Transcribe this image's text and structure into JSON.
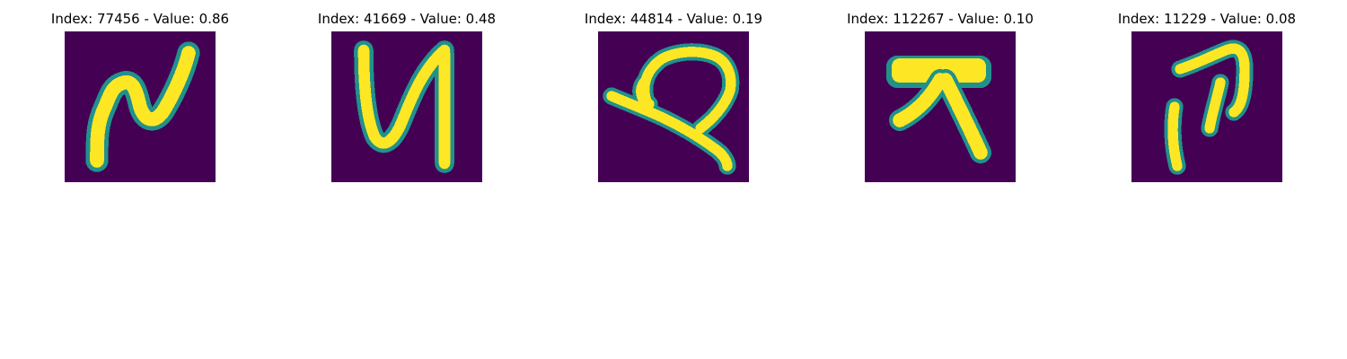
{
  "figure": {
    "colormap": {
      "background": "#440154",
      "mid": "#21918c",
      "high": "#fde725"
    },
    "panels": [
      {
        "title": "Index: 77456 - Value: 0.86",
        "index": 77456,
        "value": 0.86,
        "glyph": "handwritten-character"
      },
      {
        "title": "Index: 41669 - Value: 0.48",
        "index": 41669,
        "value": 0.48,
        "glyph": "handwritten-character"
      },
      {
        "title": "Index: 44814 - Value: 0.19",
        "index": 44814,
        "value": 0.19,
        "glyph": "handwritten-character"
      },
      {
        "title": "Index: 112267 - Value: 0.10",
        "index": 112267,
        "value": 0.1,
        "glyph": "handwritten-character"
      },
      {
        "title": "Index: 11229 - Value: 0.08",
        "index": 11229,
        "value": 0.08,
        "glyph": "handwritten-character"
      }
    ]
  }
}
